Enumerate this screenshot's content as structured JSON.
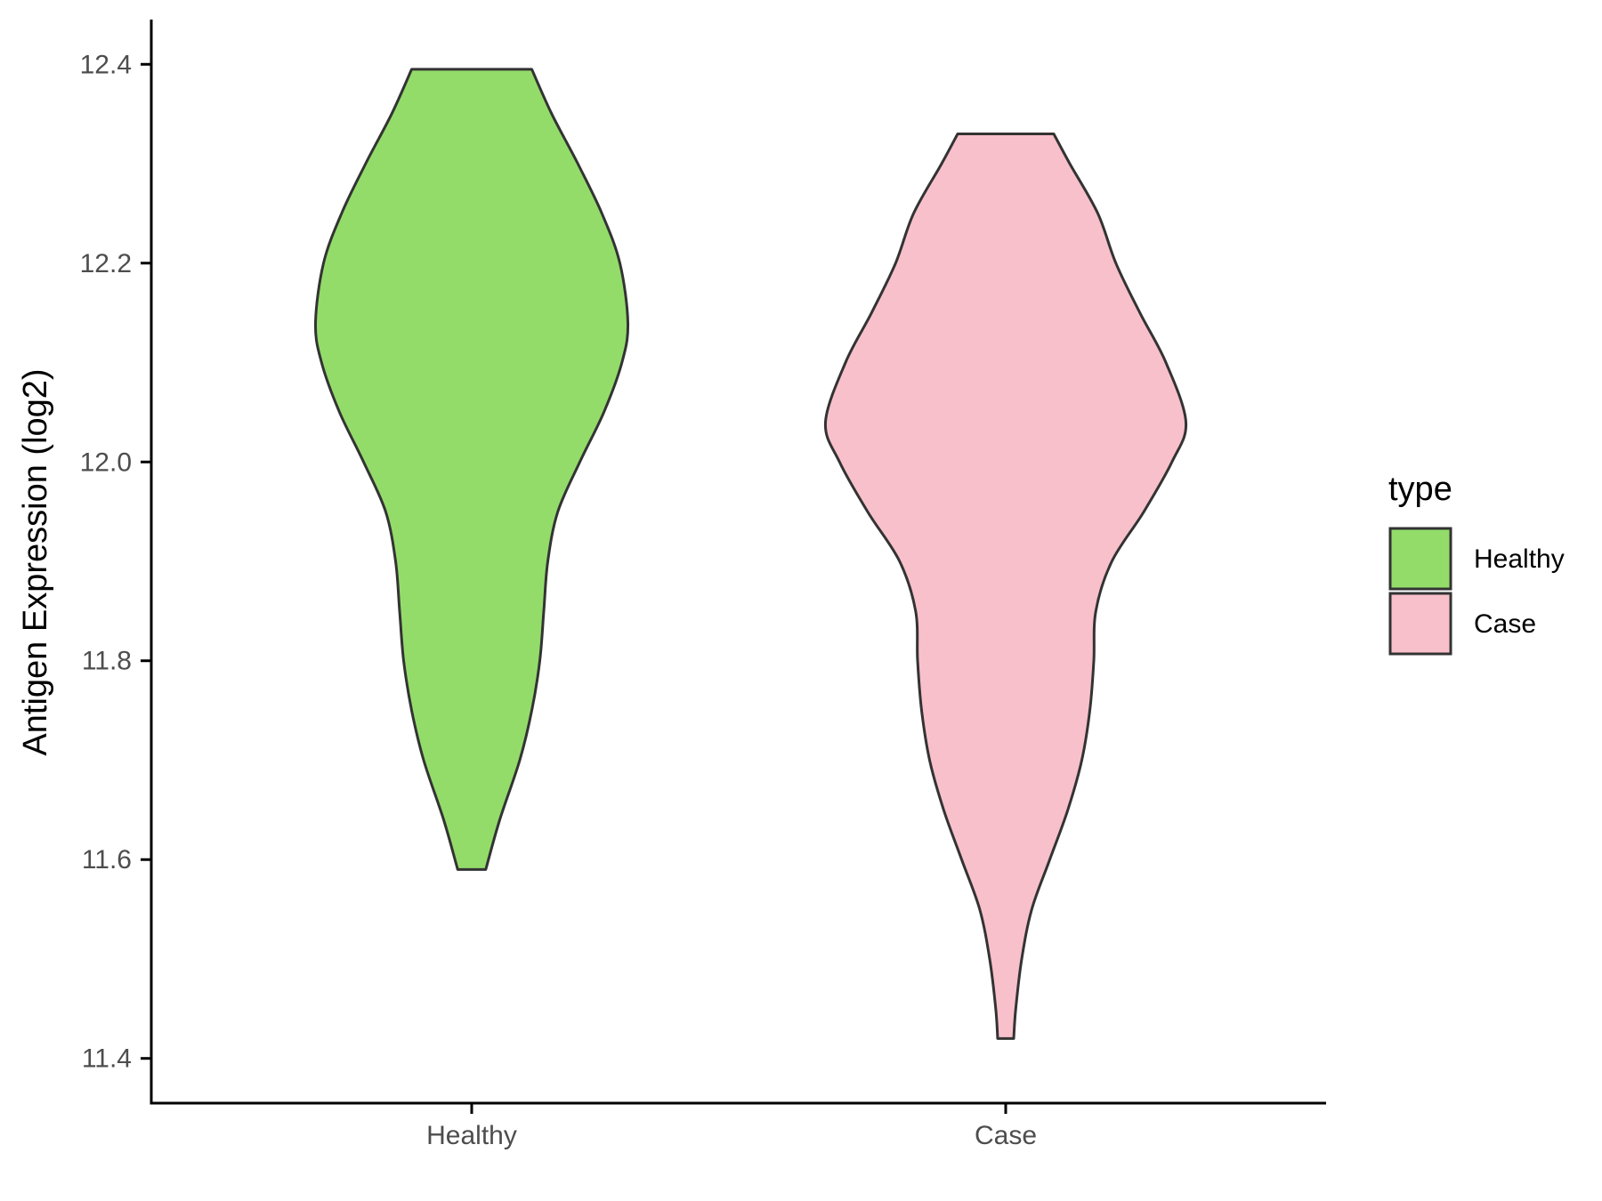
{
  "chart_data": {
    "type": "violin",
    "title": "",
    "xlabel": "",
    "ylabel": "Antigen Expression (log2)",
    "ylim": [
      11.355,
      12.445
    ],
    "yticks": [
      11.4,
      11.6,
      11.8,
      12.0,
      12.2,
      12.4
    ],
    "ytick_labels": [
      "11.4",
      "11.6",
      "11.8",
      "12.0",
      "12.2",
      "12.4"
    ],
    "categories": [
      "Healthy",
      "Case"
    ],
    "grid": false,
    "legend": {
      "title": "type",
      "position": "right",
      "entries": [
        "Healthy",
        "Case"
      ]
    },
    "series": [
      {
        "name": "Healthy",
        "color": "#93dc6a",
        "min": 11.59,
        "max": 12.395,
        "density": [
          [
            11.59,
            0.07
          ],
          [
            11.64,
            0.14
          ],
          [
            11.7,
            0.24
          ],
          [
            11.75,
            0.3
          ],
          [
            11.8,
            0.34
          ],
          [
            11.85,
            0.36
          ],
          [
            11.9,
            0.38
          ],
          [
            11.95,
            0.43
          ],
          [
            12.0,
            0.54
          ],
          [
            12.05,
            0.66
          ],
          [
            12.1,
            0.75
          ],
          [
            12.14,
            0.78
          ],
          [
            12.2,
            0.74
          ],
          [
            12.25,
            0.65
          ],
          [
            12.3,
            0.53
          ],
          [
            12.35,
            0.4
          ],
          [
            12.395,
            0.3
          ]
        ]
      },
      {
        "name": "Case",
        "color": "#f8c0cb",
        "min": 11.42,
        "max": 12.33,
        "density": [
          [
            11.42,
            0.04
          ],
          [
            11.45,
            0.05
          ],
          [
            11.5,
            0.08
          ],
          [
            11.55,
            0.13
          ],
          [
            11.6,
            0.22
          ],
          [
            11.65,
            0.31
          ],
          [
            11.7,
            0.38
          ],
          [
            11.75,
            0.42
          ],
          [
            11.8,
            0.44
          ],
          [
            11.85,
            0.45
          ],
          [
            11.9,
            0.53
          ],
          [
            11.95,
            0.69
          ],
          [
            12.0,
            0.83
          ],
          [
            12.04,
            0.9
          ],
          [
            12.1,
            0.8
          ],
          [
            12.15,
            0.67
          ],
          [
            12.2,
            0.55
          ],
          [
            12.25,
            0.46
          ],
          [
            12.3,
            0.32
          ],
          [
            12.33,
            0.24
          ]
        ]
      }
    ]
  }
}
